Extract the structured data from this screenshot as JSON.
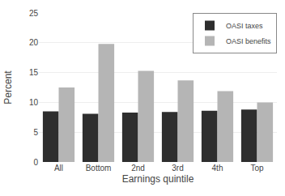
{
  "chart_data": {
    "type": "bar",
    "xlabel": "Earnings quintile",
    "ylabel": "Percent",
    "categories": [
      "All",
      "Bottom",
      "2nd",
      "3rd",
      "4th",
      "Top"
    ],
    "series": [
      {
        "name": "OASI taxes",
        "color": "#2e2e2e",
        "values": [
          8.5,
          8.1,
          8.3,
          8.4,
          8.6,
          8.8
        ]
      },
      {
        "name": "OASI benefits",
        "color": "#b5b5b5",
        "values": [
          12.5,
          19.8,
          15.3,
          13.7,
          11.9,
          10.0
        ]
      }
    ],
    "ylim": [
      0,
      25
    ],
    "yticks": [
      0,
      5,
      10,
      15,
      20,
      25
    ],
    "grid": true,
    "legend": "upper right"
  }
}
